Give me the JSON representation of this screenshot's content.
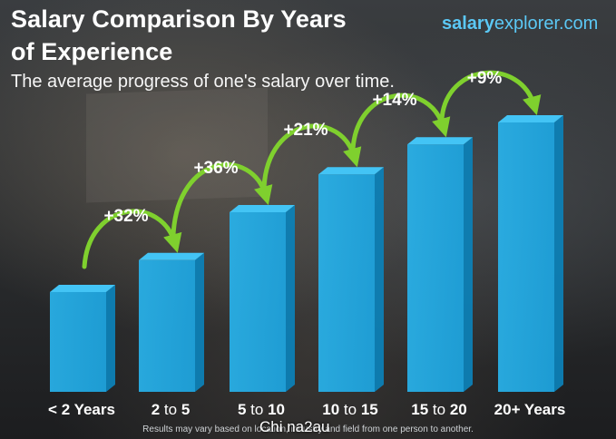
{
  "header": {
    "title_line1": "Salary Comparison By Years",
    "title_line2": "of Experience",
    "subtitle": "The average progress of one's salary over time."
  },
  "brand": {
    "part1": "salary",
    "part2": "explorer.com"
  },
  "footnote": "Results may vary based on location, industry and field from one person to another.",
  "watermark": "Chi na2au",
  "colors": {
    "bar_front": "#1da6e2",
    "bar_side": "#0d7fb5",
    "bar_top": "#43c4f5",
    "arrow": "#7fd02e",
    "brand": "#5bc8f5"
  },
  "chart_data": {
    "type": "bar",
    "categories": [
      "< 2 Years",
      "2 to 5",
      "5 to 10",
      "10 to 15",
      "15 to 20",
      "20+ Years"
    ],
    "values": [
      1.0,
      1.32,
      1.8,
      2.18,
      2.48,
      2.7
    ],
    "increase_labels": [
      "+32%",
      "+36%",
      "+21%",
      "+14%",
      "+9%"
    ],
    "title": "Salary Comparison By Years of Experience",
    "subtitle": "The average progress of one's salary over time.",
    "xlabel": "",
    "ylabel": "",
    "grid": false
  }
}
